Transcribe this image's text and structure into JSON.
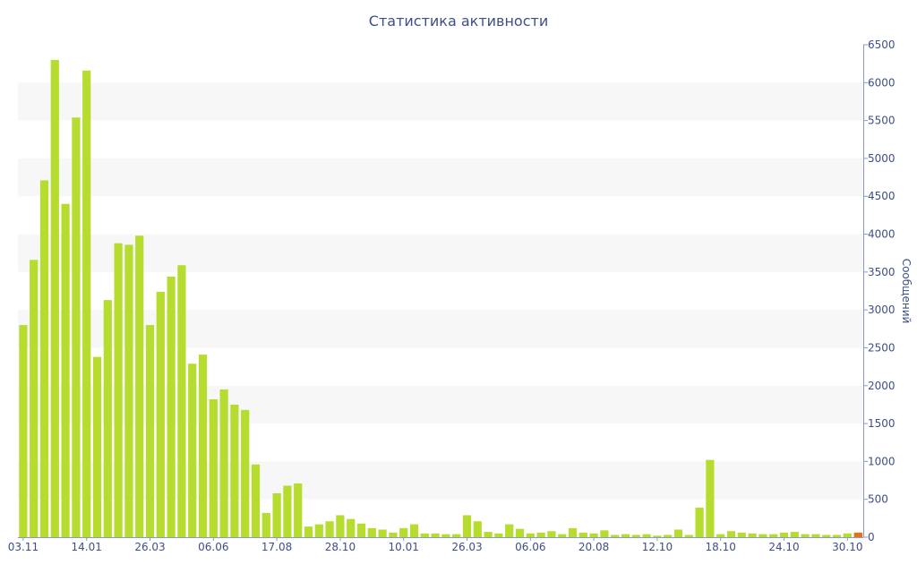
{
  "chart_data": {
    "type": "bar",
    "title": "Статистика активности",
    "ylabel": "Сообщений",
    "ylim": [
      0,
      6500
    ],
    "yticks": [
      0,
      500,
      1000,
      1500,
      2000,
      2500,
      3000,
      3500,
      4000,
      4500,
      5000,
      5500,
      6000,
      6500
    ],
    "x_tick_labels": [
      {
        "label": "03.11",
        "index": 0
      },
      {
        "label": "14.01",
        "index": 6
      },
      {
        "label": "26.03",
        "index": 12
      },
      {
        "label": "06.06",
        "index": 18
      },
      {
        "label": "17.08",
        "index": 24
      },
      {
        "label": "28.10",
        "index": 30
      },
      {
        "label": "10.01",
        "index": 36
      },
      {
        "label": "26.03",
        "index": 42
      },
      {
        "label": "06.06",
        "index": 48
      },
      {
        "label": "20.08",
        "index": 54
      },
      {
        "label": "12.10",
        "index": 60
      },
      {
        "label": "18.10",
        "index": 66
      },
      {
        "label": "24.10",
        "index": 72
      },
      {
        "label": "30.10",
        "index": 78
      }
    ],
    "grid": "alternating horizontal bands",
    "colors": {
      "bar": "#b5dc2f",
      "last_bar": "#e8701a",
      "text": "#3d4f86",
      "band": "#f7f7f7",
      "axis": "#8a9bc0"
    },
    "values": [
      2800,
      3660,
      4710,
      6300,
      4400,
      5540,
      6160,
      2380,
      3130,
      3880,
      3860,
      3980,
      2800,
      3240,
      3440,
      3590,
      2290,
      2410,
      1820,
      1950,
      1750,
      1680,
      960,
      320,
      580,
      680,
      710,
      140,
      170,
      210,
      290,
      240,
      180,
      120,
      100,
      60,
      120,
      170,
      50,
      50,
      40,
      40,
      290,
      210,
      70,
      50,
      170,
      110,
      50,
      60,
      80,
      40,
      120,
      60,
      50,
      90,
      30,
      40,
      30,
      40,
      20,
      30,
      100,
      30,
      390,
      1020,
      40,
      80,
      60,
      50,
      40,
      40,
      60,
      70,
      40,
      40,
      30,
      30,
      50,
      60
    ]
  }
}
